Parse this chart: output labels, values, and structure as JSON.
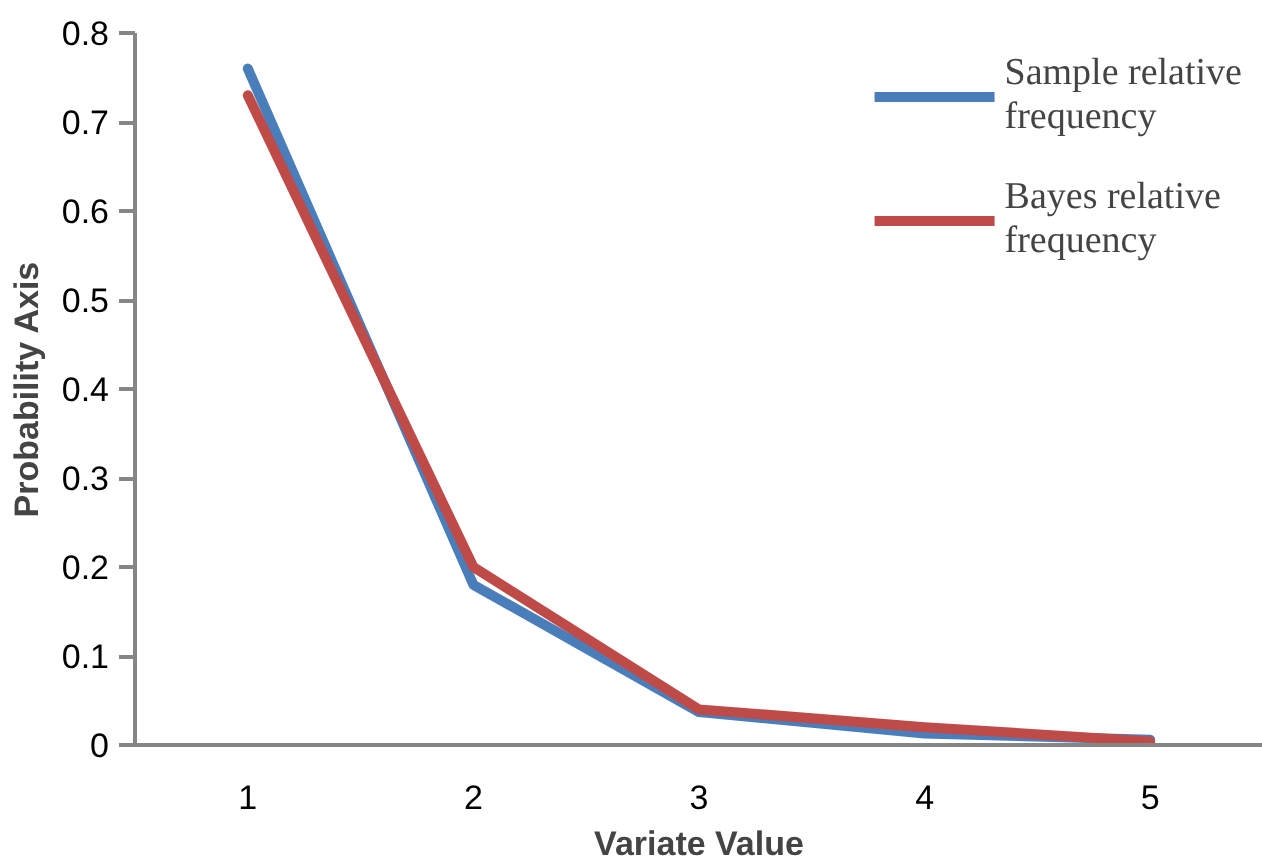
{
  "chart_data": {
    "type": "line",
    "xlabel": "Variate Value",
    "ylabel": "Probability Axis",
    "categories": [
      "1",
      "2",
      "3",
      "4",
      "5"
    ],
    "ylim": [
      0,
      0.8
    ],
    "yticks": [
      0,
      0.1,
      0.2,
      0.3,
      0.4,
      0.5,
      0.6,
      0.7,
      0.8
    ],
    "grid": false,
    "legend": "top right",
    "marker": "none",
    "line_style": "solid",
    "series": [
      {
        "name": "Sample relative frequency",
        "color": "#4a7ebb",
        "values": [
          0.76,
          0.18,
          0.037,
          0.013,
          0.006
        ]
      },
      {
        "name": "Bayes relative frequency",
        "color": "#be4b48",
        "values": [
          0.73,
          0.2,
          0.04,
          0.02,
          0.004
        ]
      }
    ]
  }
}
